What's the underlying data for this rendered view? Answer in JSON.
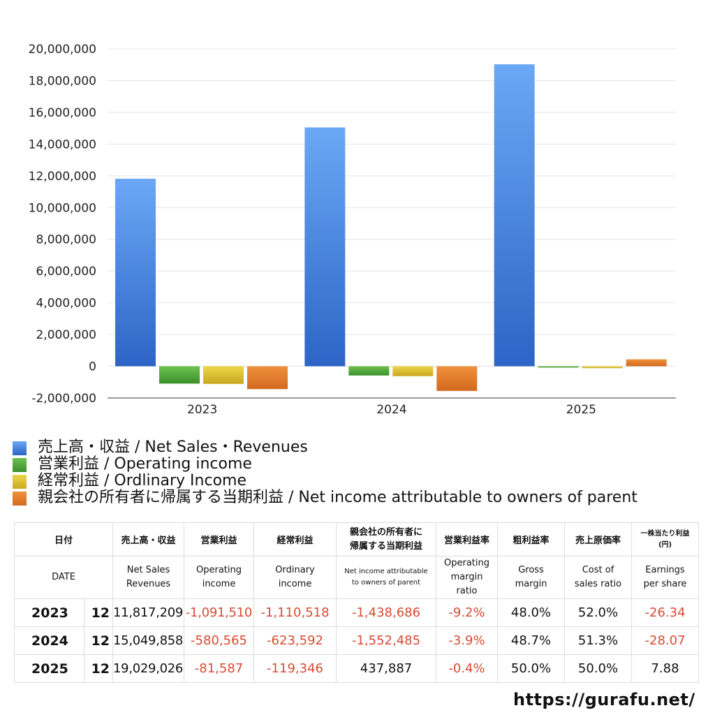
{
  "chart_data": {
    "type": "bar",
    "categories": [
      "2023",
      "2024",
      "2025"
    ],
    "ylim": [
      -2000000,
      20000000
    ],
    "yticks": [
      "-2,000,000",
      "0",
      "2,000,000",
      "4,000,000",
      "6,000,000",
      "8,000,000",
      "10,000,000",
      "12,000,000",
      "14,000,000",
      "16,000,000",
      "18,000,000",
      "20,000,000"
    ],
    "grid": true,
    "legend_position": "bottom",
    "series": [
      {
        "name": "売上高・収益 / Net Sales・Revenues",
        "color": "#3d7fe0",
        "color_top": "#6aa8f5",
        "color_bottom": "#2d64c6",
        "values": [
          11817209,
          15049858,
          19029026
        ]
      },
      {
        "name": "営業利益 / Operating income",
        "color": "#4aa53a",
        "color_top": "#6cc24f",
        "color_bottom": "#3a8f2a",
        "values": [
          -1091510,
          -580565,
          -81587
        ]
      },
      {
        "name": "経常利益 / Ordlinary Income",
        "color": "#d9bb2a",
        "color_top": "#edd64a",
        "color_bottom": "#c9a820",
        "values": [
          -1110518,
          -623592,
          -119346
        ]
      },
      {
        "name": "親会社の所有者に帰属する当期利益 / Net income attributable to owners of parent",
        "color": "#e07a2a",
        "color_top": "#f0913b",
        "color_bottom": "#d2691f",
        "values": [
          -1438686,
          -1552485,
          437887
        ]
      }
    ]
  },
  "table": {
    "header_jp": {
      "date": "日付",
      "sales": "売上高・収益",
      "op": "営業利益",
      "ord": "経常利益",
      "net_l1": "親会社の所有者に",
      "net_l2": "帰属する当期利益",
      "opm": "営業利益率",
      "gm": "粗利益率",
      "cost": "売上原価率",
      "eps_l1": "一株当たり利益",
      "eps_l2": "(円)"
    },
    "header_en": {
      "date": "DATE",
      "sales_l1": "Net Sales",
      "sales_l2": "Revenues",
      "op_l1": "Operating",
      "op_l2": "income",
      "ord_l1": "Ordinary",
      "ord_l2": "income",
      "net_l1": "Net income attributable",
      "net_l2": "to owners of parent",
      "opm_l1": "Operating",
      "opm_l2": "margin",
      "opm_l3": "ratio",
      "gm_l1": "Gross",
      "gm_l2": "margin",
      "cost_l1": "Cost of",
      "cost_l2": "sales ratio",
      "eps_l1": "Earnings",
      "eps_l2": "per share"
    },
    "rows": [
      {
        "year": "2023",
        "month": "12",
        "sales": "11,817,209",
        "op": "-1,091,510",
        "ord": "-1,110,518",
        "net": "-1,438,686",
        "opm": "-9.2%",
        "gm": "48.0%",
        "cost": "52.0%",
        "eps": "-26.34"
      },
      {
        "year": "2024",
        "month": "12",
        "sales": "15,049,858",
        "op": "-580,565",
        "ord": "-623,592",
        "net": "-1,552,485",
        "opm": "-3.9%",
        "gm": "48.7%",
        "cost": "51.3%",
        "eps": "-28.07"
      },
      {
        "year": "2025",
        "month": "12",
        "sales": "19,029,026",
        "op": "-81,587",
        "ord": "-119,346",
        "net": "437,887",
        "opm": "-0.4%",
        "gm": "50.0%",
        "cost": "50.0%",
        "eps": "7.88"
      }
    ]
  },
  "site_url": "https://gurafu.net/"
}
